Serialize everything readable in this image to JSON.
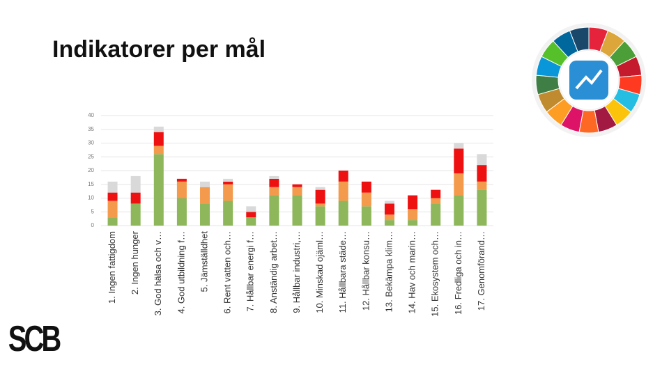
{
  "logo": "SCB",
  "chart_data": {
    "type": "stacked-bar",
    "title": "Indikatorer per mål",
    "categories": [
      "1. Ingen fattigdom",
      "2. Ingen hunger",
      "3. God hälsa och v…",
      "4. God utbildning f…",
      "5. Jämställdhet",
      "6. Rent vatten och…",
      "7. Hållbar energi f…",
      "8. Anständig arbet…",
      "9. Hållbar industri,…",
      "10. Minskad ojäml…",
      "11. Hållbara städe…",
      "12. Hållbar konsu…",
      "13. Bekämpa klim…",
      "14. Hav och marin…",
      "15. Ekosystem och…",
      "16. Fredliga och in…",
      "17. Genomförand…"
    ],
    "series": [
      {
        "color": "#8db75a",
        "values": [
          3,
          8,
          26,
          10,
          8,
          9,
          3,
          11,
          11,
          7,
          9,
          7,
          2,
          2,
          8,
          11,
          13
        ]
      },
      {
        "color": "#f39a4c",
        "values": [
          6,
          0,
          3,
          6,
          6,
          6,
          0,
          3,
          3,
          1,
          7,
          5,
          2,
          4,
          2,
          8,
          3
        ]
      },
      {
        "color": "#ee1111",
        "values": [
          3,
          4,
          5,
          1,
          0,
          1,
          2,
          3,
          1,
          5,
          4,
          4,
          4,
          5,
          3,
          9,
          6
        ]
      },
      {
        "color": "#d9d9d9",
        "values": [
          4,
          6,
          2,
          0,
          2,
          1,
          2,
          1,
          0,
          1,
          0,
          0,
          1,
          0,
          0,
          2,
          4
        ]
      }
    ],
    "ylim": [
      0,
      40
    ],
    "yticks": [
      0,
      5,
      10,
      15,
      20,
      25,
      30,
      35,
      40
    ],
    "grid": true
  }
}
